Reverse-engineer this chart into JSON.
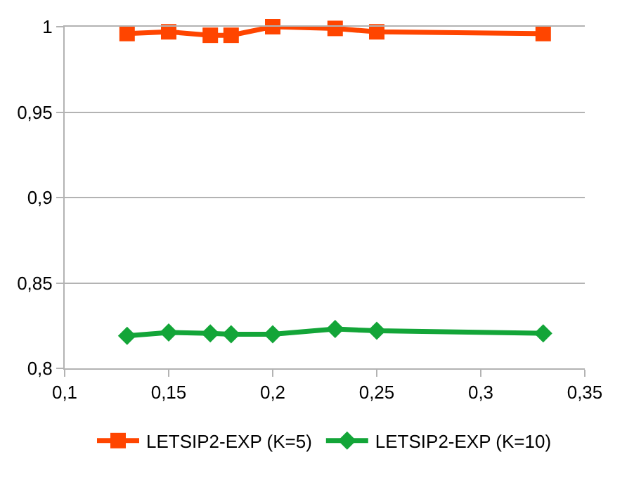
{
  "chart_data": {
    "type": "line",
    "x": [
      0.13,
      0.15,
      0.17,
      0.18,
      0.2,
      0.23,
      0.25,
      0.33
    ],
    "series": [
      {
        "name": "LETSIP2-EXP (K=5)",
        "color": "#ff4500",
        "marker": "square",
        "values": [
          0.996,
          0.997,
          0.995,
          0.995,
          1.0,
          0.999,
          0.997,
          0.996
        ]
      },
      {
        "name": "LETSIP2-EXP (K=10)",
        "color": "#13a538",
        "marker": "diamond",
        "values": [
          0.819,
          0.821,
          0.8205,
          0.82,
          0.82,
          0.823,
          0.822,
          0.8205
        ]
      }
    ],
    "xlim": [
      0.1,
      0.35
    ],
    "xticks": [
      {
        "value": 0.1,
        "label": "0,1"
      },
      {
        "value": 0.15,
        "label": "0,15"
      },
      {
        "value": 0.2,
        "label": "0,2"
      },
      {
        "value": 0.25,
        "label": "0,25"
      },
      {
        "value": 0.3,
        "label": "0,3"
      },
      {
        "value": 0.35,
        "label": "0,35"
      }
    ],
    "ylim": [
      0.8,
      1
    ],
    "yticks": [
      {
        "value": 0.8,
        "label": "0,8"
      },
      {
        "value": 0.85,
        "label": "0,85"
      },
      {
        "value": 0.9,
        "label": "0,9"
      },
      {
        "value": 0.95,
        "label": "0,95"
      },
      1
    ],
    "grid": "y",
    "legend": "bottom",
    "line_style": "solid"
  }
}
